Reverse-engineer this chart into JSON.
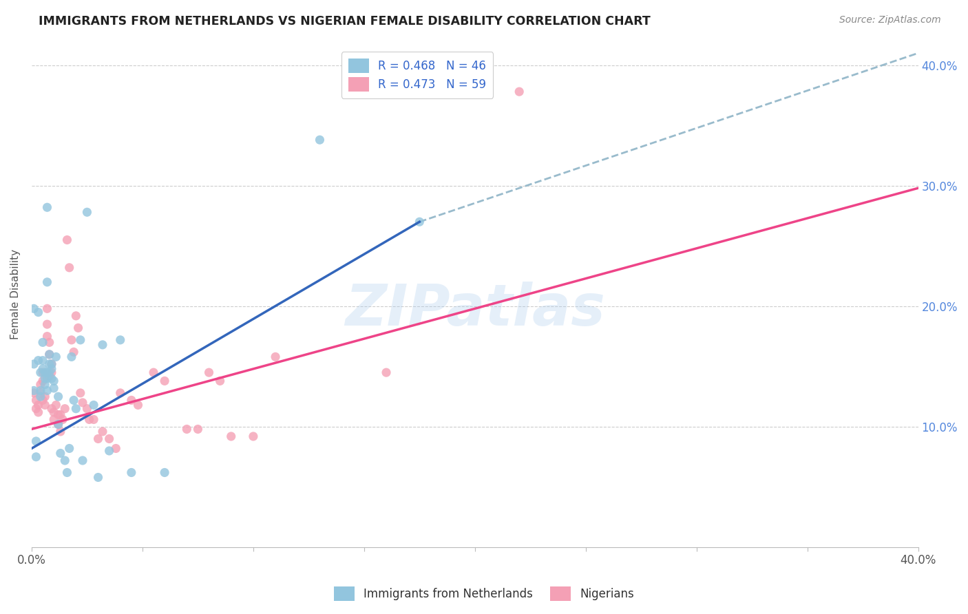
{
  "title": "IMMIGRANTS FROM NETHERLANDS VS NIGERIAN FEMALE DISABILITY CORRELATION CHART",
  "source": "Source: ZipAtlas.com",
  "ylabel": "Female Disability",
  "xlim": [
    0.0,
    0.4
  ],
  "ylim": [
    0.0,
    0.42
  ],
  "y_ticks": [
    0.1,
    0.2,
    0.3,
    0.4
  ],
  "x_ticks": [
    0.0,
    0.05,
    0.1,
    0.15,
    0.2,
    0.25,
    0.3,
    0.35,
    0.4
  ],
  "color_blue": "#92c5de",
  "color_pink": "#f4a0b5",
  "line_blue": "#3366bb",
  "line_pink": "#ee4488",
  "line_dash_color": "#99bbcc",
  "watermark": "ZIPatlas",
  "blue_line_x": [
    0.0,
    0.175
  ],
  "blue_line_y": [
    0.082,
    0.27
  ],
  "pink_line_x": [
    0.0,
    0.4
  ],
  "pink_line_y": [
    0.098,
    0.298
  ],
  "dash_line_x": [
    0.175,
    0.4
  ],
  "dash_line_y": [
    0.27,
    0.41
  ],
  "blue_scatter": [
    [
      0.001,
      0.13
    ],
    [
      0.002,
      0.088
    ],
    [
      0.002,
      0.075
    ],
    [
      0.003,
      0.195
    ],
    [
      0.003,
      0.155
    ],
    [
      0.004,
      0.145
    ],
    [
      0.004,
      0.13
    ],
    [
      0.004,
      0.125
    ],
    [
      0.005,
      0.17
    ],
    [
      0.005,
      0.155
    ],
    [
      0.005,
      0.148
    ],
    [
      0.006,
      0.145
    ],
    [
      0.006,
      0.14
    ],
    [
      0.006,
      0.135
    ],
    [
      0.007,
      0.145
    ],
    [
      0.007,
      0.14
    ],
    [
      0.007,
      0.13
    ],
    [
      0.008,
      0.16
    ],
    [
      0.008,
      0.152
    ],
    [
      0.008,
      0.145
    ],
    [
      0.009,
      0.152
    ],
    [
      0.009,
      0.148
    ],
    [
      0.009,
      0.14
    ],
    [
      0.01,
      0.138
    ],
    [
      0.01,
      0.132
    ],
    [
      0.011,
      0.158
    ],
    [
      0.012,
      0.125
    ],
    [
      0.012,
      0.102
    ],
    [
      0.013,
      0.078
    ],
    [
      0.015,
      0.072
    ],
    [
      0.016,
      0.062
    ],
    [
      0.017,
      0.082
    ],
    [
      0.018,
      0.158
    ],
    [
      0.019,
      0.122
    ],
    [
      0.02,
      0.115
    ],
    [
      0.022,
      0.172
    ],
    [
      0.023,
      0.072
    ],
    [
      0.025,
      0.278
    ],
    [
      0.028,
      0.118
    ],
    [
      0.03,
      0.058
    ],
    [
      0.032,
      0.168
    ],
    [
      0.035,
      0.08
    ],
    [
      0.04,
      0.172
    ],
    [
      0.045,
      0.062
    ],
    [
      0.06,
      0.062
    ],
    [
      0.007,
      0.282
    ],
    [
      0.007,
      0.22
    ],
    [
      0.001,
      0.198
    ],
    [
      0.001,
      0.152
    ],
    [
      0.13,
      0.338
    ],
    [
      0.175,
      0.27
    ]
  ],
  "pink_scatter": [
    [
      0.001,
      0.128
    ],
    [
      0.002,
      0.122
    ],
    [
      0.002,
      0.115
    ],
    [
      0.003,
      0.118
    ],
    [
      0.003,
      0.112
    ],
    [
      0.004,
      0.135
    ],
    [
      0.004,
      0.128
    ],
    [
      0.005,
      0.145
    ],
    [
      0.005,
      0.138
    ],
    [
      0.005,
      0.122
    ],
    [
      0.006,
      0.125
    ],
    [
      0.006,
      0.118
    ],
    [
      0.007,
      0.198
    ],
    [
      0.007,
      0.185
    ],
    [
      0.007,
      0.175
    ],
    [
      0.008,
      0.17
    ],
    [
      0.008,
      0.16
    ],
    [
      0.008,
      0.142
    ],
    [
      0.009,
      0.152
    ],
    [
      0.009,
      0.145
    ],
    [
      0.009,
      0.115
    ],
    [
      0.01,
      0.112
    ],
    [
      0.01,
      0.106
    ],
    [
      0.011,
      0.118
    ],
    [
      0.012,
      0.11
    ],
    [
      0.012,
      0.102
    ],
    [
      0.013,
      0.096
    ],
    [
      0.013,
      0.11
    ],
    [
      0.014,
      0.106
    ],
    [
      0.015,
      0.115
    ],
    [
      0.016,
      0.255
    ],
    [
      0.017,
      0.232
    ],
    [
      0.018,
      0.172
    ],
    [
      0.019,
      0.162
    ],
    [
      0.02,
      0.192
    ],
    [
      0.021,
      0.182
    ],
    [
      0.022,
      0.128
    ],
    [
      0.023,
      0.12
    ],
    [
      0.025,
      0.115
    ],
    [
      0.026,
      0.106
    ],
    [
      0.028,
      0.106
    ],
    [
      0.03,
      0.09
    ],
    [
      0.032,
      0.096
    ],
    [
      0.035,
      0.09
    ],
    [
      0.038,
      0.082
    ],
    [
      0.04,
      0.128
    ],
    [
      0.045,
      0.122
    ],
    [
      0.048,
      0.118
    ],
    [
      0.055,
      0.145
    ],
    [
      0.06,
      0.138
    ],
    [
      0.07,
      0.098
    ],
    [
      0.075,
      0.098
    ],
    [
      0.08,
      0.145
    ],
    [
      0.085,
      0.138
    ],
    [
      0.09,
      0.092
    ],
    [
      0.1,
      0.092
    ],
    [
      0.11,
      0.158
    ],
    [
      0.16,
      0.145
    ],
    [
      0.22,
      0.378
    ]
  ]
}
